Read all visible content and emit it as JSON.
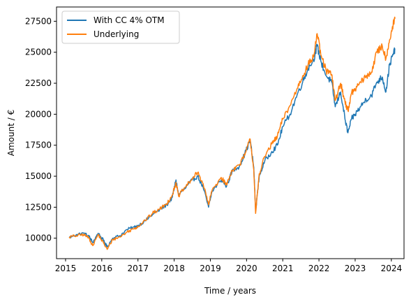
{
  "chart_data": {
    "type": "line",
    "xlabel": "Time / years",
    "ylabel": "Amount / €",
    "xlim": [
      2014.75,
      2024.35
    ],
    "ylim": [
      8350,
      28650
    ],
    "xticks": [
      "2015",
      "2016",
      "2017",
      "2018",
      "2019",
      "2020",
      "2021",
      "2022",
      "2023",
      "2024"
    ],
    "yticks": [
      "10000",
      "12500",
      "15000",
      "17500",
      "20000",
      "22500",
      "25000",
      "27500"
    ],
    "legend": "top-left",
    "grid": false,
    "series": [
      {
        "name": "With CC 4% OTM",
        "color": "#1f77b4",
        "points": [
          [
            2015.1,
            10050
          ],
          [
            2015.3,
            10300
          ],
          [
            2015.5,
            10400
          ],
          [
            2015.65,
            10150
          ],
          [
            2015.75,
            9650
          ],
          [
            2015.9,
            10400
          ],
          [
            2016.05,
            9800
          ],
          [
            2016.15,
            9300
          ],
          [
            2016.3,
            10000
          ],
          [
            2016.5,
            10200
          ],
          [
            2016.7,
            10700
          ],
          [
            2016.9,
            10900
          ],
          [
            2017.0,
            11000
          ],
          [
            2017.2,
            11400
          ],
          [
            2017.4,
            11900
          ],
          [
            2017.6,
            12300
          ],
          [
            2017.8,
            12700
          ],
          [
            2017.95,
            13300
          ],
          [
            2018.05,
            14700
          ],
          [
            2018.12,
            13500
          ],
          [
            2018.3,
            14000
          ],
          [
            2018.5,
            14700
          ],
          [
            2018.65,
            15000
          ],
          [
            2018.8,
            14100
          ],
          [
            2018.95,
            12500
          ],
          [
            2019.05,
            13800
          ],
          [
            2019.3,
            14700
          ],
          [
            2019.45,
            14200
          ],
          [
            2019.6,
            15400
          ],
          [
            2019.8,
            15800
          ],
          [
            2019.95,
            16800
          ],
          [
            2020.1,
            17900
          ],
          [
            2020.2,
            15700
          ],
          [
            2020.25,
            12200
          ],
          [
            2020.35,
            15000
          ],
          [
            2020.5,
            16200
          ],
          [
            2020.7,
            17000
          ],
          [
            2020.85,
            17500
          ],
          [
            2021.0,
            19000
          ],
          [
            2021.2,
            20000
          ],
          [
            2021.4,
            21600
          ],
          [
            2021.55,
            22600
          ],
          [
            2021.7,
            23700
          ],
          [
            2021.85,
            24400
          ],
          [
            2021.95,
            25500
          ],
          [
            2022.05,
            24300
          ],
          [
            2022.2,
            23100
          ],
          [
            2022.35,
            22600
          ],
          [
            2022.45,
            20600
          ],
          [
            2022.6,
            21800
          ],
          [
            2022.72,
            19600
          ],
          [
            2022.8,
            18500
          ],
          [
            2022.9,
            19600
          ],
          [
            2023.0,
            20000
          ],
          [
            2023.15,
            20600
          ],
          [
            2023.3,
            21200
          ],
          [
            2023.45,
            21500
          ],
          [
            2023.6,
            22600
          ],
          [
            2023.75,
            23000
          ],
          [
            2023.85,
            21800
          ],
          [
            2023.95,
            24000
          ],
          [
            2024.05,
            24800
          ],
          [
            2024.1,
            25300
          ]
        ]
      },
      {
        "name": "Underlying",
        "color": "#ff7f0e",
        "points": [
          [
            2015.1,
            10100
          ],
          [
            2015.3,
            10200
          ],
          [
            2015.5,
            10300
          ],
          [
            2015.65,
            10000
          ],
          [
            2015.75,
            9400
          ],
          [
            2015.9,
            10300
          ],
          [
            2016.05,
            9600
          ],
          [
            2016.15,
            9100
          ],
          [
            2016.3,
            9900
          ],
          [
            2016.5,
            10100
          ],
          [
            2016.7,
            10500
          ],
          [
            2016.9,
            10800
          ],
          [
            2017.0,
            10950
          ],
          [
            2017.2,
            11450
          ],
          [
            2017.4,
            12000
          ],
          [
            2017.6,
            12350
          ],
          [
            2017.8,
            12800
          ],
          [
            2017.95,
            13500
          ],
          [
            2018.05,
            14500
          ],
          [
            2018.12,
            13400
          ],
          [
            2018.3,
            14100
          ],
          [
            2018.5,
            14800
          ],
          [
            2018.65,
            15300
          ],
          [
            2018.8,
            14400
          ],
          [
            2018.95,
            12700
          ],
          [
            2019.05,
            13900
          ],
          [
            2019.3,
            14900
          ],
          [
            2019.45,
            14300
          ],
          [
            2019.6,
            15500
          ],
          [
            2019.8,
            15900
          ],
          [
            2019.95,
            16700
          ],
          [
            2020.1,
            18000
          ],
          [
            2020.2,
            15500
          ],
          [
            2020.25,
            12000
          ],
          [
            2020.35,
            15200
          ],
          [
            2020.5,
            16600
          ],
          [
            2020.7,
            17600
          ],
          [
            2020.85,
            18200
          ],
          [
            2021.0,
            19600
          ],
          [
            2021.2,
            20700
          ],
          [
            2021.4,
            22100
          ],
          [
            2021.55,
            23100
          ],
          [
            2021.7,
            24000
          ],
          [
            2021.85,
            24600
          ],
          [
            2021.95,
            26500
          ],
          [
            2022.05,
            24800
          ],
          [
            2022.2,
            23500
          ],
          [
            2022.35,
            23200
          ],
          [
            2022.45,
            21100
          ],
          [
            2022.6,
            22500
          ],
          [
            2022.72,
            21000
          ],
          [
            2022.8,
            20300
          ],
          [
            2022.9,
            21700
          ],
          [
            2023.0,
            22000
          ],
          [
            2023.15,
            22600
          ],
          [
            2023.3,
            23000
          ],
          [
            2023.45,
            23400
          ],
          [
            2023.6,
            25000
          ],
          [
            2023.75,
            25500
          ],
          [
            2023.85,
            24500
          ],
          [
            2023.95,
            26000
          ],
          [
            2024.05,
            27200
          ],
          [
            2024.1,
            27700
          ]
        ]
      }
    ]
  }
}
